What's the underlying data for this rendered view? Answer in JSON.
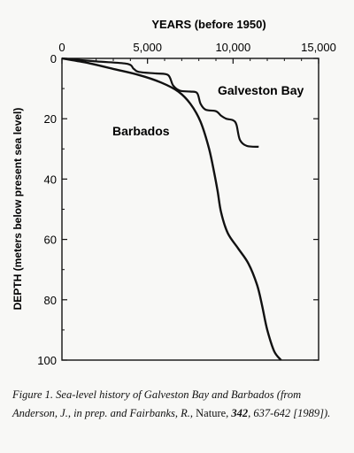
{
  "chart_data": {
    "type": "line",
    "title": "",
    "xlabel": "YEARS (before 1950)",
    "ylabel": "DEPTH (meters below present sea level)",
    "xlim": [
      0,
      15000
    ],
    "ylim": [
      0,
      100
    ],
    "x_ticks": [
      0,
      5000,
      10000,
      15000
    ],
    "x_tick_labels": [
      "0",
      "5,000",
      "10,000",
      "15,000"
    ],
    "y_ticks": [
      0,
      20,
      40,
      60,
      80,
      100
    ],
    "y_tick_labels": [
      "0",
      "20",
      "40",
      "60",
      "80",
      "100"
    ],
    "x_axis_position": "top",
    "y_inverted": true,
    "grid": false,
    "series": [
      {
        "name": "Galveston Bay",
        "points": [
          [
            0,
            0
          ],
          [
            2000,
            1
          ],
          [
            3800,
            1.8
          ],
          [
            4200,
            3.5
          ],
          [
            4500,
            4.5
          ],
          [
            5500,
            5
          ],
          [
            6200,
            5.5
          ],
          [
            6500,
            9
          ],
          [
            6900,
            10.7
          ],
          [
            7500,
            11
          ],
          [
            7900,
            11.5
          ],
          [
            8100,
            15
          ],
          [
            8400,
            17
          ],
          [
            9000,
            17.5
          ],
          [
            9300,
            19
          ],
          [
            9600,
            20
          ],
          [
            10000,
            20.5
          ],
          [
            10200,
            22
          ],
          [
            10400,
            27
          ],
          [
            10800,
            29
          ],
          [
            11500,
            29.3
          ]
        ]
      },
      {
        "name": "Barbados",
        "points": [
          [
            0,
            0
          ],
          [
            1500,
            1.5
          ],
          [
            3000,
            3.5
          ],
          [
            4500,
            5.5
          ],
          [
            5800,
            8
          ],
          [
            6800,
            11
          ],
          [
            7500,
            15
          ],
          [
            8100,
            21
          ],
          [
            8600,
            30
          ],
          [
            8900,
            38
          ],
          [
            9100,
            44
          ],
          [
            9300,
            51
          ],
          [
            9700,
            58
          ],
          [
            10300,
            63
          ],
          [
            10900,
            68
          ],
          [
            11400,
            75
          ],
          [
            11700,
            82
          ],
          [
            12000,
            90
          ],
          [
            12400,
            97
          ],
          [
            12800,
            100
          ]
        ]
      }
    ]
  },
  "caption": {
    "part1": "Figure 1.  Sea-level history of Galveston Bay and Barbados (from Anderson, J., in prep. and Fairbanks, R., ",
    "journal": "Nature",
    "part2": ", ",
    "volume": "342",
    "part3": ", 637-642 [1989])."
  }
}
